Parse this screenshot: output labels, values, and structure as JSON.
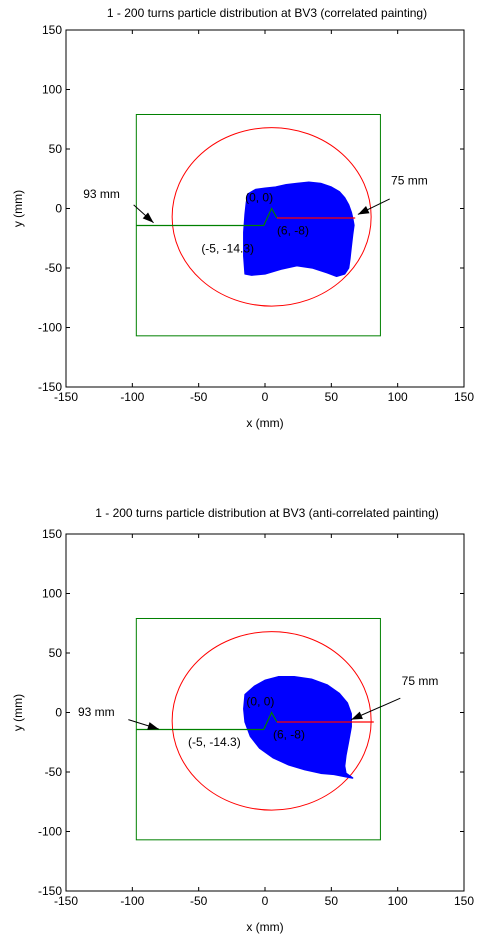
{
  "chart_data": [
    {
      "type": "scatter",
      "title": "1 - 200 turns particle distribution at BV3 (correlated painting)",
      "xlabel": "x (mm)",
      "ylabel": "y (mm)",
      "xlim": [
        -150,
        150
      ],
      "ylim": [
        -150,
        150
      ],
      "xticks": [
        -150,
        -100,
        -50,
        0,
        50,
        100,
        150
      ],
      "yticks": [
        150,
        100,
        50,
        0,
        -50,
        -100,
        -150
      ],
      "grid": false,
      "box": {
        "color": "#008000",
        "x": [
          -97,
          87
        ],
        "y": [
          -107,
          79
        ]
      },
      "circle": {
        "color": "#ff0000",
        "center": [
          5,
          -7
        ],
        "radius": 75
      },
      "distribution": {
        "color": "#0000ff",
        "outline": [
          [
            -13,
            12
          ],
          [
            -7,
            16
          ],
          [
            0,
            17
          ],
          [
            8,
            18
          ],
          [
            16,
            20
          ],
          [
            24,
            21
          ],
          [
            33,
            22
          ],
          [
            42,
            21
          ],
          [
            50,
            18
          ],
          [
            56,
            14
          ],
          [
            60,
            9
          ],
          [
            63,
            3
          ],
          [
            65,
            -3
          ],
          [
            66,
            -8
          ],
          [
            67,
            -14
          ],
          [
            66,
            -22
          ],
          [
            65,
            -32
          ],
          [
            64,
            -42
          ],
          [
            63,
            -50
          ],
          [
            60,
            -55
          ],
          [
            54,
            -57
          ],
          [
            47,
            -54
          ],
          [
            36,
            -50
          ],
          [
            24,
            -48
          ],
          [
            12,
            -51
          ],
          [
            0,
            -55
          ],
          [
            -10,
            -56
          ],
          [
            -15,
            -55
          ],
          [
            -16,
            -40
          ],
          [
            -16,
            -20
          ],
          [
            -15,
            -5
          ],
          [
            -14,
            5
          ]
        ]
      },
      "green_line": {
        "color": "#008000",
        "x": [
          -97,
          -1,
          5,
          9
        ],
        "y": [
          -14.3,
          -14.3,
          0,
          -8
        ]
      },
      "red_line": {
        "color": "#ff0000",
        "x": [
          9,
          68
        ],
        "y": [
          -8,
          -8
        ]
      },
      "annotations": [
        {
          "text": "93 mm",
          "x": -137,
          "y": 9,
          "arrow_from": [
            -99,
            3
          ],
          "arrow_to": [
            -84,
            -12
          ]
        },
        {
          "text": "75 mm",
          "x": 95,
          "y": 20,
          "arrow_from": [
            94,
            8
          ],
          "arrow_to": [
            70,
            -5
          ]
        },
        {
          "text": "(0, 0)",
          "x": -15,
          "y": 6
        },
        {
          "text": "(6, -8)",
          "x": 9,
          "y": -22
        },
        {
          "text": "(-5, -14.3)",
          "x": -48,
          "y": -37
        }
      ]
    },
    {
      "type": "scatter",
      "title": "1 - 200 turns particle distribution at BV3 (anti-correlated painting)",
      "xlabel": "x (mm)",
      "ylabel": "y (mm)",
      "xlim": [
        -150,
        150
      ],
      "ylim": [
        -150,
        150
      ],
      "xticks": [
        -150,
        -100,
        -50,
        0,
        50,
        100,
        150
      ],
      "yticks": [
        150,
        100,
        50,
        0,
        -50,
        -100,
        -150
      ],
      "grid": false,
      "box": {
        "color": "#008000",
        "x": [
          -97,
          87
        ],
        "y": [
          -107,
          79
        ]
      },
      "circle": {
        "color": "#ff0000",
        "center": [
          5,
          -7
        ],
        "radius": 75
      },
      "distribution": {
        "color": "#0000ff",
        "outline": [
          [
            -15,
            15
          ],
          [
            -8,
            22
          ],
          [
            0,
            27
          ],
          [
            10,
            30
          ],
          [
            22,
            30
          ],
          [
            35,
            28
          ],
          [
            47,
            23
          ],
          [
            56,
            16
          ],
          [
            62,
            8
          ],
          [
            65,
            -1
          ],
          [
            65,
            -12
          ],
          [
            63,
            -24
          ],
          [
            61,
            -36
          ],
          [
            60,
            -45
          ],
          [
            61,
            -51
          ],
          [
            66,
            -55
          ],
          [
            61,
            -54
          ],
          [
            52,
            -52
          ],
          [
            42,
            -51
          ],
          [
            30,
            -48
          ],
          [
            18,
            -44
          ],
          [
            6,
            -38
          ],
          [
            -4,
            -30
          ],
          [
            -11,
            -20
          ],
          [
            -15,
            -8
          ],
          [
            -16,
            3
          ]
        ]
      },
      "green_line": {
        "color": "#008000",
        "x": [
          -97,
          -1,
          5,
          9
        ],
        "y": [
          -14.3,
          -14.3,
          0,
          -8
        ]
      },
      "red_line": {
        "color": "#ff0000",
        "x": [
          9,
          82
        ],
        "y": [
          -8,
          -8
        ]
      },
      "annotations": [
        {
          "text": "93 mm",
          "x": -141,
          "y": -3,
          "arrow_from": [
            -103,
            -6
          ],
          "arrow_to": [
            -80,
            -14
          ]
        },
        {
          "text": "75 mm",
          "x": 103,
          "y": 23,
          "arrow_from": [
            102,
            12
          ],
          "arrow_to": [
            65,
            -6
          ]
        },
        {
          "text": "(0, 0)",
          "x": -14,
          "y": 6
        },
        {
          "text": "(6, -8)",
          "x": 6,
          "y": -22
        },
        {
          "text": "(-5, -14.3)",
          "x": -58,
          "y": -28
        }
      ]
    }
  ]
}
